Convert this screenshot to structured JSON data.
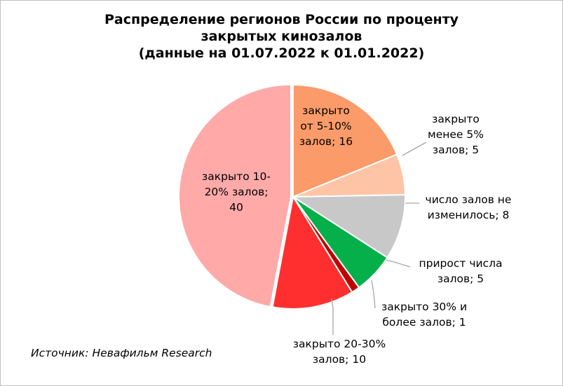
{
  "chart_data": {
    "type": "pie",
    "title_lines": [
      "Распределение регионов России по проценту",
      "закрытых кинозалов",
      "(данные на 01.07.2022 к 01.01.2022)"
    ],
    "slices": [
      {
        "label_lines": [
          "закрыто",
          "от 5-10%",
          "залов; 16"
        ],
        "value": 16,
        "color": "#fb9b69"
      },
      {
        "label_lines": [
          "закрыто",
          "менее 5%",
          "залов; 5"
        ],
        "value": 5,
        "color": "#fdc5a6"
      },
      {
        "label_lines": [
          "число залов не",
          "изменилось; 8"
        ],
        "value": 8,
        "color": "#c8c8c8"
      },
      {
        "label_lines": [
          "прирост числа",
          "залов; 5"
        ],
        "value": 5,
        "color": "#05b04b"
      },
      {
        "label_lines": [
          "закрыто 30% и",
          "более залов; 1"
        ],
        "value": 1,
        "color": "#c00000"
      },
      {
        "label_lines": [
          "закрыто 20-30%",
          "залов; 10"
        ],
        "value": 10,
        "color": "#ff2f2f"
      },
      {
        "label_lines": [
          "закрыто 10-",
          "20% залов;",
          "40"
        ],
        "value": 40,
        "color": "#ffa9a9"
      }
    ]
  },
  "source": "Источник: Невафильм Research"
}
